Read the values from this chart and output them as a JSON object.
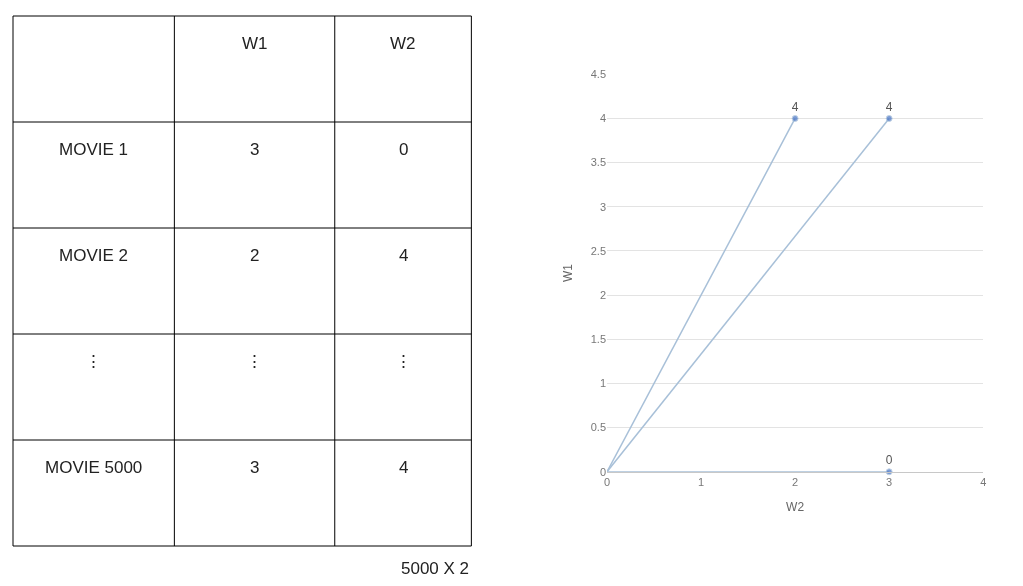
{
  "chart_data": [
    {
      "type": "other",
      "categories": [
        null,
        "W1",
        "W2"
      ],
      "y_categories": [
        "MOVIE 1",
        "MOVIE 2",
        "⋮",
        "MOVIE 5000"
      ],
      "cell_labels": [
        [
          "3",
          "0"
        ],
        [
          "2",
          "4"
        ],
        [
          "⋮",
          "⋮"
        ],
        [
          "3",
          "4"
        ]
      ],
      "annotations": [
        "5000 X 2"
      ]
    },
    {
      "type": "line",
      "xlabel": "W2",
      "ylabel": "W1",
      "xlim": [
        0,
        4
      ],
      "ylim": [
        0,
        4.5
      ],
      "xticks": [
        0,
        1,
        2,
        3,
        4
      ],
      "yticks": [
        0,
        0.5,
        1,
        1.5,
        2,
        2.5,
        3,
        3.5,
        4,
        4.5
      ],
      "grid": "y",
      "legend": false,
      "marker": "circle",
      "line_style": "solid",
      "series": [
        {
          "color": "#a8c0d8",
          "x": [
            0,
            2
          ],
          "values": [
            0,
            4
          ],
          "value_labels": [
            null,
            "4"
          ]
        },
        {
          "color": "#a8c0d8",
          "x": [
            0,
            3
          ],
          "values": [
            0,
            4
          ],
          "value_labels": [
            null,
            "4"
          ]
        },
        {
          "color": "#a8c0d8",
          "x": [
            0,
            3
          ],
          "values": [
            0,
            0
          ],
          "value_labels": [
            null,
            "0"
          ]
        }
      ]
    }
  ]
}
